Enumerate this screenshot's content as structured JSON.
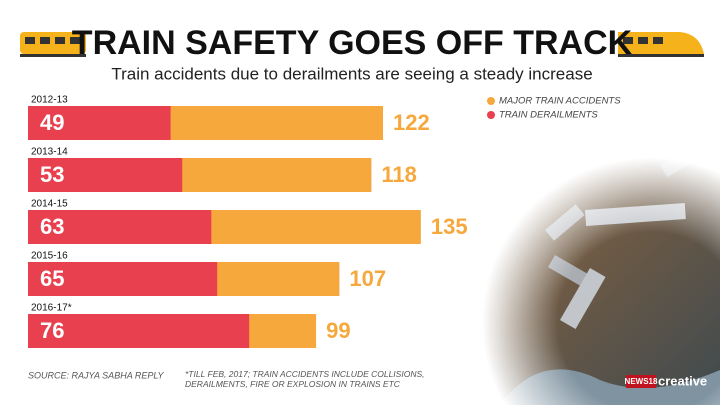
{
  "chart_data": {
    "type": "bar",
    "title": "TRAIN SAFETY GOES OFF TRACK",
    "subtitle": "Train accidents due to derailments are seeing a steady increase",
    "categories": [
      "2012-13",
      "2013-14",
      "2014-15",
      "2015-16",
      "2016-17*"
    ],
    "series": [
      {
        "name": "MAJOR TRAIN ACCIDENTS",
        "color": "#f6a83c",
        "values": [
          122,
          118,
          135,
          107,
          99
        ]
      },
      {
        "name": "TRAIN DERAILMENTS",
        "color": "#e8404f",
        "values": [
          49,
          53,
          63,
          65,
          76
        ]
      }
    ],
    "source": "SOURCE: RAJYA SABHA REPLY",
    "note": "*TILL FEB, 2017; TRAIN ACCIDENTS INCLUDE COLLISIONS, DERAILMENTS, FIRE OR EXPLOSION IN TRAINS ETC",
    "logo": [
      "NEWS18",
      "creative"
    ]
  }
}
